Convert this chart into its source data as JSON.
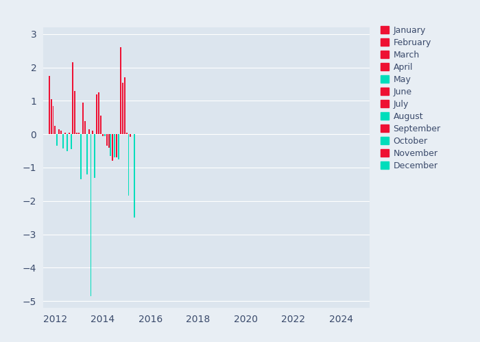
{
  "background_color": "#E8EEF4",
  "plot_bg_color": "#DCE5EE",
  "red_color": "#EE1133",
  "cyan_color": "#00DDBB",
  "ylim": [
    -5.2,
    3.2
  ],
  "xlim": [
    2011.5,
    2025.2
  ],
  "xticks": [
    2012,
    2014,
    2016,
    2018,
    2020,
    2022,
    2024
  ],
  "yticks": [
    -5,
    -4,
    -3,
    -2,
    -1,
    0,
    1,
    2,
    3
  ],
  "bars": [
    {
      "x": 2011.75,
      "value": 1.75,
      "color": "red"
    },
    {
      "x": 2011.833,
      "value": 1.05,
      "color": "red"
    },
    {
      "x": 2011.917,
      "value": 0.85,
      "color": "red"
    },
    {
      "x": 2012.0,
      "value": 0.25,
      "color": "red"
    },
    {
      "x": 2012.083,
      "value": -0.35,
      "color": "cyan"
    },
    {
      "x": 2012.167,
      "value": 0.15,
      "color": "red"
    },
    {
      "x": 2012.25,
      "value": 0.1,
      "color": "red"
    },
    {
      "x": 2012.333,
      "value": -0.43,
      "color": "cyan"
    },
    {
      "x": 2012.417,
      "value": 0.05,
      "color": "red"
    },
    {
      "x": 2012.5,
      "value": -0.5,
      "color": "cyan"
    },
    {
      "x": 2012.583,
      "value": 0.05,
      "color": "red"
    },
    {
      "x": 2012.667,
      "value": -0.45,
      "color": "cyan"
    },
    {
      "x": 2012.75,
      "value": 2.15,
      "color": "red"
    },
    {
      "x": 2012.833,
      "value": 1.3,
      "color": "red"
    },
    {
      "x": 2012.917,
      "value": 0.05,
      "color": "red"
    },
    {
      "x": 2013.0,
      "value": 0.05,
      "color": "red"
    },
    {
      "x": 2013.083,
      "value": -1.35,
      "color": "cyan"
    },
    {
      "x": 2013.167,
      "value": 0.95,
      "color": "red"
    },
    {
      "x": 2013.25,
      "value": 0.4,
      "color": "red"
    },
    {
      "x": 2013.333,
      "value": -1.2,
      "color": "cyan"
    },
    {
      "x": 2013.417,
      "value": 0.15,
      "color": "red"
    },
    {
      "x": 2013.5,
      "value": -4.85,
      "color": "cyan"
    },
    {
      "x": 2013.583,
      "value": 0.1,
      "color": "red"
    },
    {
      "x": 2013.667,
      "value": -1.3,
      "color": "cyan"
    },
    {
      "x": 2013.75,
      "value": 1.2,
      "color": "red"
    },
    {
      "x": 2013.833,
      "value": 1.25,
      "color": "red"
    },
    {
      "x": 2013.917,
      "value": 0.55,
      "color": "red"
    },
    {
      "x": 2014.0,
      "value": -0.05,
      "color": "red"
    },
    {
      "x": 2014.083,
      "value": -0.05,
      "color": "cyan"
    },
    {
      "x": 2014.167,
      "value": -0.35,
      "color": "red"
    },
    {
      "x": 2014.25,
      "value": -0.4,
      "color": "red"
    },
    {
      "x": 2014.333,
      "value": -0.65,
      "color": "cyan"
    },
    {
      "x": 2014.417,
      "value": -0.8,
      "color": "red"
    },
    {
      "x": 2014.5,
      "value": -0.7,
      "color": "cyan"
    },
    {
      "x": 2014.583,
      "value": -0.7,
      "color": "red"
    },
    {
      "x": 2014.667,
      "value": -0.75,
      "color": "cyan"
    },
    {
      "x": 2014.75,
      "value": 2.6,
      "color": "red"
    },
    {
      "x": 2014.833,
      "value": 1.55,
      "color": "red"
    },
    {
      "x": 2014.917,
      "value": 1.7,
      "color": "red"
    },
    {
      "x": 2015.0,
      "value": 0.05,
      "color": "red"
    },
    {
      "x": 2015.083,
      "value": -1.85,
      "color": "cyan"
    },
    {
      "x": 2015.167,
      "value": -0.08,
      "color": "red"
    },
    {
      "x": 2015.333,
      "value": -2.5,
      "color": "cyan"
    }
  ],
  "legend_months": [
    "January",
    "February",
    "March",
    "April",
    "May",
    "June",
    "July",
    "August",
    "September",
    "October",
    "November",
    "December"
  ],
  "legend_colors": [
    "#EE1133",
    "#EE1133",
    "#EE1133",
    "#EE1133",
    "#00DDBB",
    "#EE1133",
    "#EE1133",
    "#00DDBB",
    "#EE1133",
    "#00DDBB",
    "#EE1133",
    "#00DDBB"
  ]
}
